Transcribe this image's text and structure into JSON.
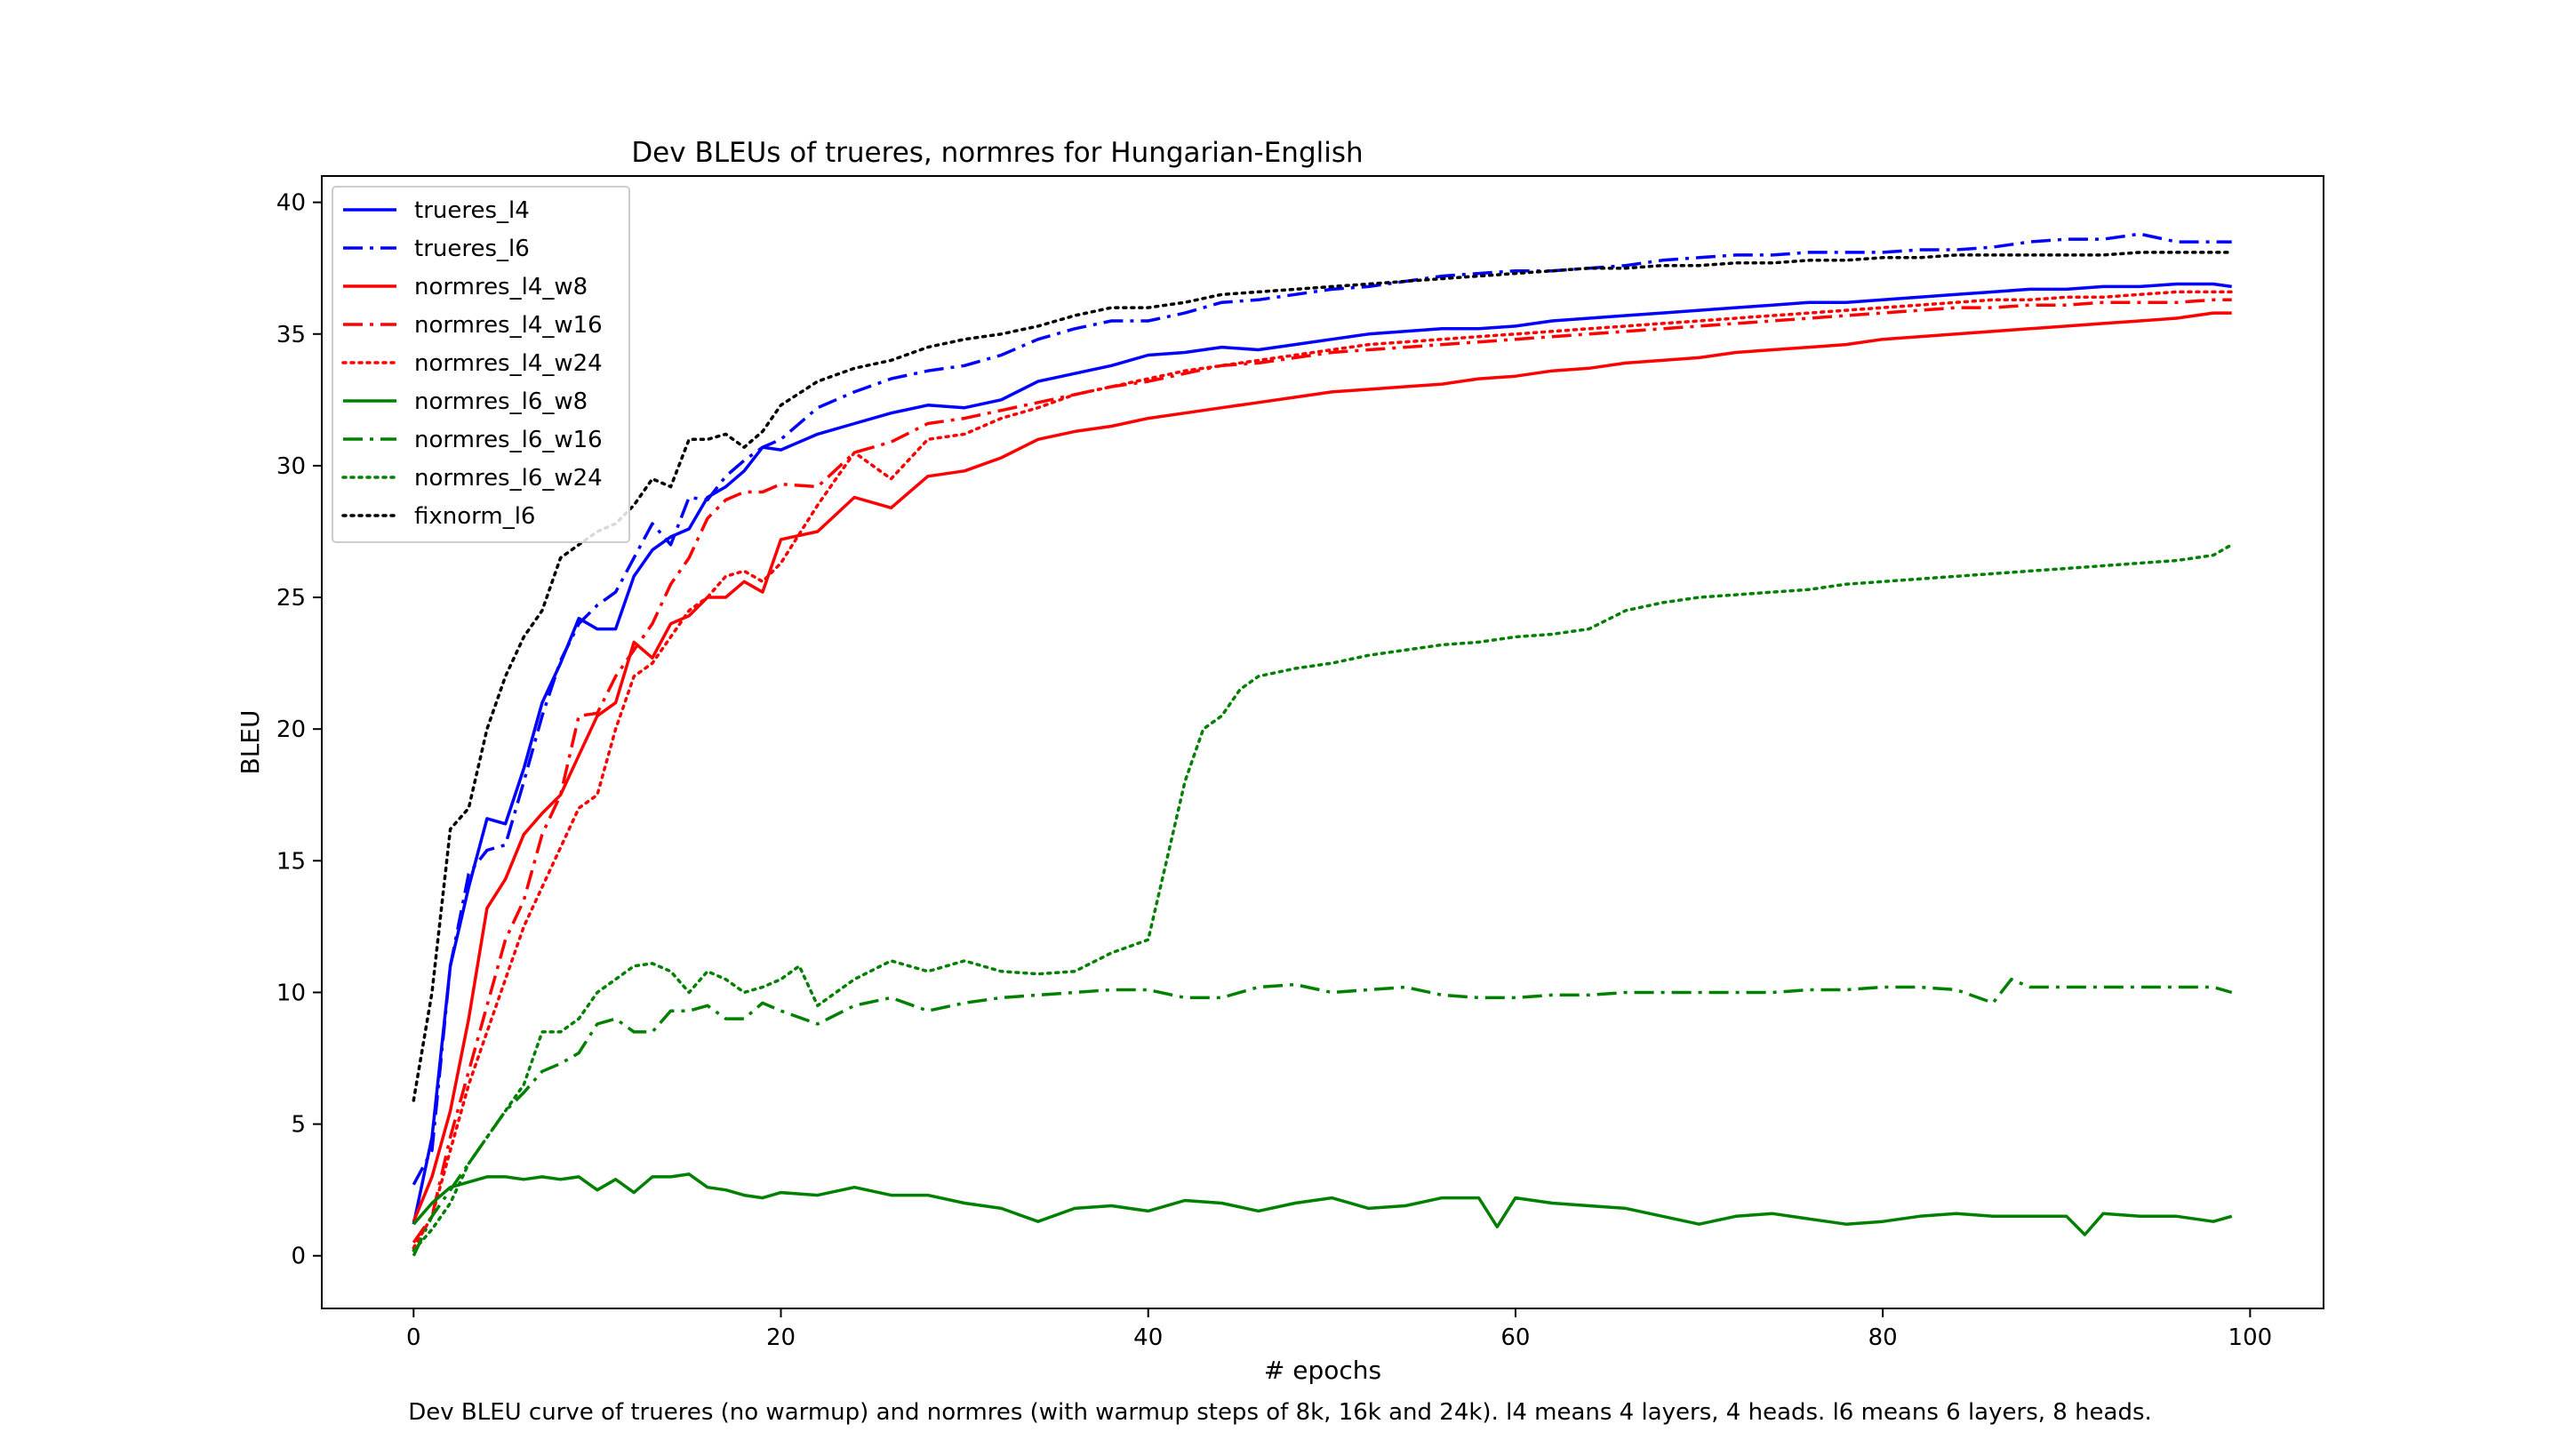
{
  "chart_data": {
    "type": "line",
    "title": "Dev BLEUs of trueres, normres for Hungarian-English",
    "xlabel": "# epochs",
    "ylabel": "BLEU",
    "xlim": [
      -5,
      104
    ],
    "ylim": [
      -2,
      41
    ],
    "xticks": [
      0,
      20,
      40,
      60,
      80,
      100
    ],
    "yticks": [
      0,
      5,
      10,
      15,
      20,
      25,
      30,
      35,
      40
    ],
    "grid": false,
    "legend_position": "top-left",
    "caption": "Dev BLEU curve of trueres (no warmup) and normres (with warmup steps of 8k, 16k and 24k). l4 means 4 layers, 4 heads. l6 means 6 layers, 8 heads.",
    "series": [
      {
        "name": "trueres_l4",
        "color": "#0000ff",
        "style": "solid",
        "x": [
          0,
          1,
          2,
          3,
          4,
          5,
          6,
          7,
          8,
          9,
          10,
          11,
          12,
          13,
          14,
          15,
          16,
          17,
          18,
          19,
          20,
          22,
          24,
          26,
          28,
          30,
          32,
          34,
          36,
          38,
          40,
          42,
          44,
          46,
          48,
          50,
          52,
          54,
          56,
          58,
          60,
          62,
          64,
          66,
          68,
          70,
          72,
          74,
          76,
          78,
          80,
          82,
          84,
          86,
          88,
          90,
          92,
          94,
          96,
          98,
          99
        ],
        "y": [
          1.2,
          4.5,
          11,
          14,
          16.6,
          16.4,
          18.5,
          21,
          22.5,
          24.2,
          23.8,
          23.8,
          25.8,
          26.8,
          27.3,
          27.6,
          28.8,
          29.2,
          29.8,
          30.7,
          30.6,
          31.2,
          31.6,
          32,
          32.3,
          32.2,
          32.5,
          33.2,
          33.5,
          33.8,
          34.2,
          34.3,
          34.5,
          34.4,
          34.6,
          34.8,
          35,
          35.1,
          35.2,
          35.2,
          35.3,
          35.5,
          35.6,
          35.7,
          35.8,
          35.9,
          36,
          36.1,
          36.2,
          36.2,
          36.3,
          36.4,
          36.5,
          36.6,
          36.7,
          36.7,
          36.8,
          36.8,
          36.9,
          36.9,
          36.8
        ]
      },
      {
        "name": "trueres_l6",
        "color": "#0000ff",
        "style": "dashdot",
        "x": [
          0,
          1,
          2,
          3,
          4,
          5,
          6,
          7,
          8,
          9,
          10,
          11,
          12,
          13,
          14,
          15,
          16,
          17,
          18,
          19,
          20,
          22,
          24,
          26,
          28,
          30,
          32,
          34,
          36,
          38,
          40,
          42,
          44,
          46,
          48,
          50,
          52,
          54,
          56,
          58,
          60,
          62,
          64,
          66,
          68,
          70,
          72,
          74,
          76,
          78,
          80,
          82,
          84,
          86,
          88,
          90,
          92,
          94,
          96,
          98,
          99
        ],
        "y": [
          2.7,
          4,
          11,
          14.5,
          15.4,
          15.6,
          18,
          20.5,
          22.6,
          24,
          24.7,
          25.2,
          26.5,
          27.8,
          27,
          28.8,
          28.7,
          29.6,
          30.2,
          30.7,
          31,
          32.2,
          32.8,
          33.3,
          33.6,
          33.8,
          34.2,
          34.8,
          35.2,
          35.5,
          35.5,
          35.8,
          36.2,
          36.3,
          36.5,
          36.7,
          36.8,
          37,
          37.2,
          37.3,
          37.4,
          37.4,
          37.5,
          37.6,
          37.8,
          37.9,
          38,
          38,
          38.1,
          38.1,
          38.1,
          38.2,
          38.2,
          38.3,
          38.5,
          38.6,
          38.6,
          38.8,
          38.5,
          38.5,
          38.5
        ]
      },
      {
        "name": "normres_l4_w8",
        "color": "#ff0000",
        "style": "solid",
        "x": [
          0,
          1,
          2,
          3,
          4,
          5,
          6,
          7,
          8,
          9,
          10,
          11,
          12,
          13,
          14,
          15,
          16,
          17,
          18,
          19,
          20,
          22,
          24,
          26,
          28,
          30,
          32,
          34,
          36,
          38,
          40,
          42,
          44,
          46,
          48,
          50,
          52,
          54,
          56,
          58,
          60,
          62,
          64,
          66,
          68,
          70,
          72,
          74,
          76,
          78,
          80,
          82,
          84,
          86,
          88,
          90,
          92,
          94,
          96,
          98,
          99
        ],
        "y": [
          1.3,
          3,
          5.5,
          9,
          13.2,
          14.3,
          16,
          16.8,
          17.5,
          19,
          20.5,
          21,
          23.3,
          22.7,
          24,
          24.3,
          25,
          25,
          25.6,
          25.2,
          27.2,
          27.5,
          28.8,
          28.4,
          29.6,
          29.8,
          30.3,
          31,
          31.3,
          31.5,
          31.8,
          32,
          32.2,
          32.4,
          32.6,
          32.8,
          32.9,
          33,
          33.1,
          33.3,
          33.4,
          33.6,
          33.7,
          33.9,
          34,
          34.1,
          34.3,
          34.4,
          34.5,
          34.6,
          34.8,
          34.9,
          35,
          35.1,
          35.2,
          35.3,
          35.4,
          35.5,
          35.6,
          35.8,
          35.8
        ]
      },
      {
        "name": "normres_l4_w16",
        "color": "#ff0000",
        "style": "dashdot",
        "x": [
          0,
          1,
          2,
          3,
          4,
          5,
          6,
          7,
          8,
          9,
          10,
          11,
          12,
          13,
          14,
          15,
          16,
          17,
          18,
          19,
          20,
          22,
          24,
          26,
          28,
          30,
          32,
          34,
          36,
          38,
          40,
          42,
          44,
          46,
          48,
          50,
          52,
          54,
          56,
          58,
          60,
          62,
          64,
          66,
          68,
          70,
          72,
          74,
          76,
          78,
          80,
          82,
          84,
          86,
          88,
          90,
          92,
          94,
          96,
          98,
          99
        ],
        "y": [
          0.5,
          1.5,
          4.5,
          7,
          9.5,
          12,
          13.5,
          16,
          17.5,
          20.5,
          20.6,
          22,
          23,
          24,
          25.5,
          26.5,
          28,
          28.7,
          29,
          29,
          29.3,
          29.2,
          30.5,
          30.9,
          31.6,
          31.8,
          32.1,
          32.4,
          32.7,
          33,
          33.2,
          33.5,
          33.8,
          33.9,
          34.1,
          34.3,
          34.4,
          34.5,
          34.6,
          34.7,
          34.8,
          34.9,
          35,
          35.1,
          35.2,
          35.3,
          35.4,
          35.5,
          35.6,
          35.7,
          35.8,
          35.9,
          36,
          36,
          36.1,
          36.1,
          36.2,
          36.2,
          36.2,
          36.3,
          36.3
        ]
      },
      {
        "name": "normres_l4_w24",
        "color": "#ff0000",
        "style": "dotted",
        "x": [
          0,
          1,
          2,
          3,
          4,
          5,
          6,
          7,
          8,
          9,
          10,
          11,
          12,
          13,
          14,
          15,
          16,
          17,
          18,
          19,
          20,
          22,
          24,
          26,
          28,
          30,
          32,
          34,
          36,
          38,
          40,
          42,
          44,
          46,
          48,
          50,
          52,
          54,
          56,
          58,
          60,
          62,
          64,
          66,
          68,
          70,
          72,
          74,
          76,
          78,
          80,
          82,
          84,
          86,
          88,
          90,
          92,
          94,
          96,
          98,
          99
        ],
        "y": [
          0.3,
          1.5,
          4,
          6.5,
          8.5,
          10.5,
          12.5,
          14,
          15.5,
          17,
          17.5,
          20,
          22,
          22.5,
          23.5,
          24.5,
          25,
          25.8,
          26,
          25.6,
          26.3,
          28.5,
          30.5,
          29.5,
          31,
          31.2,
          31.8,
          32.2,
          32.7,
          33,
          33.3,
          33.6,
          33.8,
          34,
          34.2,
          34.4,
          34.6,
          34.7,
          34.8,
          34.9,
          35,
          35.1,
          35.2,
          35.3,
          35.4,
          35.5,
          35.6,
          35.7,
          35.8,
          35.9,
          36,
          36.1,
          36.2,
          36.3,
          36.3,
          36.4,
          36.4,
          36.5,
          36.6,
          36.6,
          36.6
        ]
      },
      {
        "name": "normres_l6_w8",
        "color": "#008000",
        "style": "solid",
        "x": [
          0,
          1,
          2,
          3,
          4,
          5,
          6,
          7,
          8,
          9,
          10,
          11,
          12,
          13,
          14,
          15,
          16,
          17,
          18,
          19,
          20,
          22,
          24,
          26,
          28,
          30,
          32,
          34,
          36,
          38,
          40,
          42,
          44,
          46,
          48,
          50,
          52,
          54,
          56,
          58,
          59,
          60,
          62,
          64,
          66,
          68,
          70,
          72,
          74,
          76,
          78,
          80,
          82,
          84,
          86,
          88,
          90,
          91,
          92,
          94,
          96,
          98,
          99
        ],
        "y": [
          1.2,
          2,
          2.6,
          2.8,
          3,
          3,
          2.9,
          3,
          2.9,
          3,
          2.5,
          2.9,
          2.4,
          3,
          3,
          3.1,
          2.6,
          2.5,
          2.3,
          2.2,
          2.4,
          2.3,
          2.6,
          2.3,
          2.3,
          2,
          1.8,
          1.3,
          1.8,
          1.9,
          1.7,
          2.1,
          2,
          1.7,
          2,
          2.2,
          1.8,
          1.9,
          2.2,
          2.2,
          1.1,
          2.2,
          2,
          1.9,
          1.8,
          1.5,
          1.2,
          1.5,
          1.6,
          1.4,
          1.2,
          1.3,
          1.5,
          1.6,
          1.5,
          1.5,
          1.5,
          0.8,
          1.6,
          1.5,
          1.5,
          1.3,
          1.5
        ]
      },
      {
        "name": "normres_l6_w16",
        "color": "#008000",
        "style": "dashdot",
        "x": [
          0,
          1,
          2,
          3,
          4,
          5,
          6,
          7,
          8,
          9,
          10,
          11,
          12,
          13,
          14,
          15,
          16,
          17,
          18,
          19,
          20,
          22,
          24,
          26,
          28,
          30,
          32,
          34,
          36,
          38,
          40,
          42,
          44,
          46,
          48,
          50,
          52,
          54,
          56,
          58,
          60,
          62,
          64,
          66,
          68,
          70,
          72,
          74,
          76,
          78,
          80,
          82,
          84,
          86,
          87,
          88,
          90,
          92,
          94,
          96,
          98,
          99
        ],
        "y": [
          0,
          1.5,
          2.5,
          3.5,
          4.5,
          5.5,
          6.2,
          7,
          7.3,
          7.7,
          8.8,
          9,
          8.5,
          8.5,
          9.3,
          9.3,
          9.5,
          9,
          9,
          9.6,
          9.3,
          8.8,
          9.5,
          9.8,
          9.3,
          9.6,
          9.8,
          9.9,
          10,
          10.1,
          10.1,
          9.8,
          9.8,
          10.2,
          10.3,
          10,
          10.1,
          10.2,
          9.9,
          9.8,
          9.8,
          9.9,
          9.9,
          10,
          10,
          10,
          10,
          10,
          10.1,
          10.1,
          10.2,
          10.2,
          10.1,
          9.6,
          10.5,
          10.2,
          10.2,
          10.2,
          10.2,
          10.2,
          10.2,
          10
        ]
      },
      {
        "name": "normres_l6_w24",
        "color": "#008000",
        "style": "dotted",
        "x": [
          0,
          1,
          2,
          3,
          4,
          5,
          6,
          7,
          8,
          9,
          10,
          11,
          12,
          13,
          14,
          15,
          16,
          17,
          18,
          19,
          20,
          21,
          22,
          24,
          26,
          28,
          30,
          32,
          34,
          36,
          38,
          40,
          41,
          42,
          43,
          44,
          45,
          46,
          48,
          50,
          52,
          54,
          56,
          58,
          60,
          62,
          64,
          66,
          68,
          70,
          72,
          74,
          76,
          78,
          80,
          82,
          84,
          86,
          88,
          90,
          92,
          94,
          96,
          98,
          99
        ],
        "y": [
          0.2,
          1,
          2,
          3.5,
          4.5,
          5.5,
          6.5,
          8.5,
          8.5,
          9,
          10,
          10.5,
          11,
          11.1,
          10.8,
          10,
          10.8,
          10.5,
          10,
          10.2,
          10.5,
          11,
          9.5,
          10.5,
          11.2,
          10.8,
          11.2,
          10.8,
          10.7,
          10.8,
          11.5,
          12,
          15,
          18,
          20,
          20.5,
          21.5,
          22,
          22.3,
          22.5,
          22.8,
          23,
          23.2,
          23.3,
          23.5,
          23.6,
          23.8,
          24.5,
          24.8,
          25,
          25.1,
          25.2,
          25.3,
          25.5,
          25.6,
          25.7,
          25.8,
          25.9,
          26,
          26.1,
          26.2,
          26.3,
          26.4,
          26.6,
          27
        ]
      },
      {
        "name": "fixnorm_l6",
        "color": "#000000",
        "style": "dotted",
        "x": [
          0,
          1,
          2,
          3,
          4,
          5,
          6,
          7,
          8,
          9,
          10,
          11,
          12,
          13,
          14,
          15,
          16,
          17,
          18,
          19,
          20,
          22,
          24,
          26,
          28,
          30,
          32,
          34,
          36,
          38,
          40,
          42,
          44,
          46,
          48,
          50,
          52,
          54,
          56,
          58,
          60,
          62,
          64,
          66,
          68,
          70,
          72,
          74,
          76,
          78,
          80,
          82,
          84,
          86,
          88,
          90,
          92,
          94,
          96,
          98,
          99
        ],
        "y": [
          5.9,
          10,
          16.2,
          17,
          20,
          22,
          23.5,
          24.5,
          26.5,
          27,
          27.5,
          27.8,
          28.5,
          29.5,
          29.2,
          31,
          31,
          31.2,
          30.7,
          31.3,
          32.3,
          33.2,
          33.7,
          34,
          34.5,
          34.8,
          35,
          35.3,
          35.7,
          36,
          36,
          36.2,
          36.5,
          36.6,
          36.7,
          36.8,
          36.9,
          37,
          37.1,
          37.2,
          37.3,
          37.4,
          37.5,
          37.5,
          37.6,
          37.6,
          37.7,
          37.7,
          37.8,
          37.8,
          37.9,
          37.9,
          38,
          38,
          38,
          38,
          38,
          38.1,
          38.1,
          38.1,
          38.1
        ]
      }
    ]
  }
}
